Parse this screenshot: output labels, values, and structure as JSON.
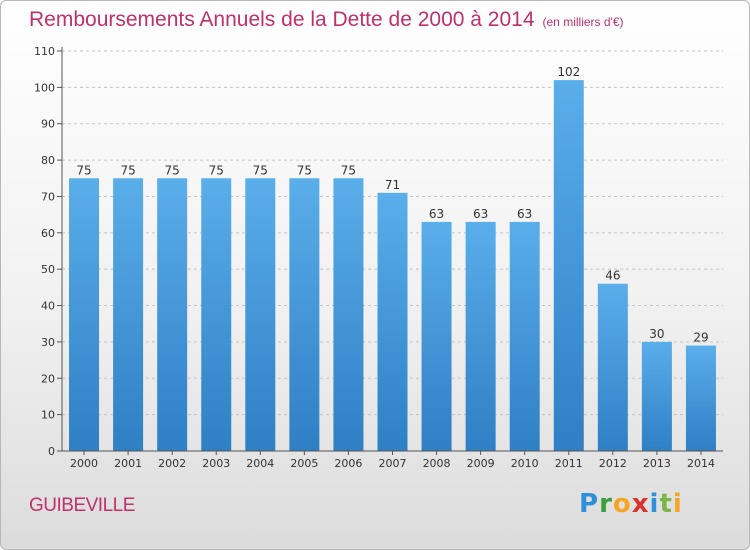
{
  "title": "Remboursements Annuels de la Dette de 2000 à 2014",
  "unit_note": "(en milliers d'€)",
  "commune": "GUIBEVILLE",
  "logo": {
    "letters": [
      "P",
      "r",
      "o",
      "x",
      "i",
      "t",
      "i"
    ]
  },
  "colors": {
    "bar": "#4a9fe0",
    "bar_dark": "#2f7fc4",
    "title": "#c0306a"
  },
  "chart_data": {
    "type": "bar",
    "categories": [
      "2000",
      "2001",
      "2002",
      "2003",
      "2004",
      "2005",
      "2006",
      "2007",
      "2008",
      "2009",
      "2010",
      "2011",
      "2012",
      "2013",
      "2014"
    ],
    "values": [
      75,
      75,
      75,
      75,
      75,
      75,
      75,
      71,
      63,
      63,
      63,
      102,
      46,
      30,
      29
    ],
    "title": "Remboursements Annuels de la Dette de 2000 à 2014",
    "xlabel": "",
    "ylabel": "",
    "ylim": [
      0,
      110
    ],
    "yticks": [
      0,
      10,
      20,
      30,
      40,
      50,
      60,
      70,
      80,
      90,
      100,
      110
    ],
    "grid": true,
    "legend": "none"
  }
}
